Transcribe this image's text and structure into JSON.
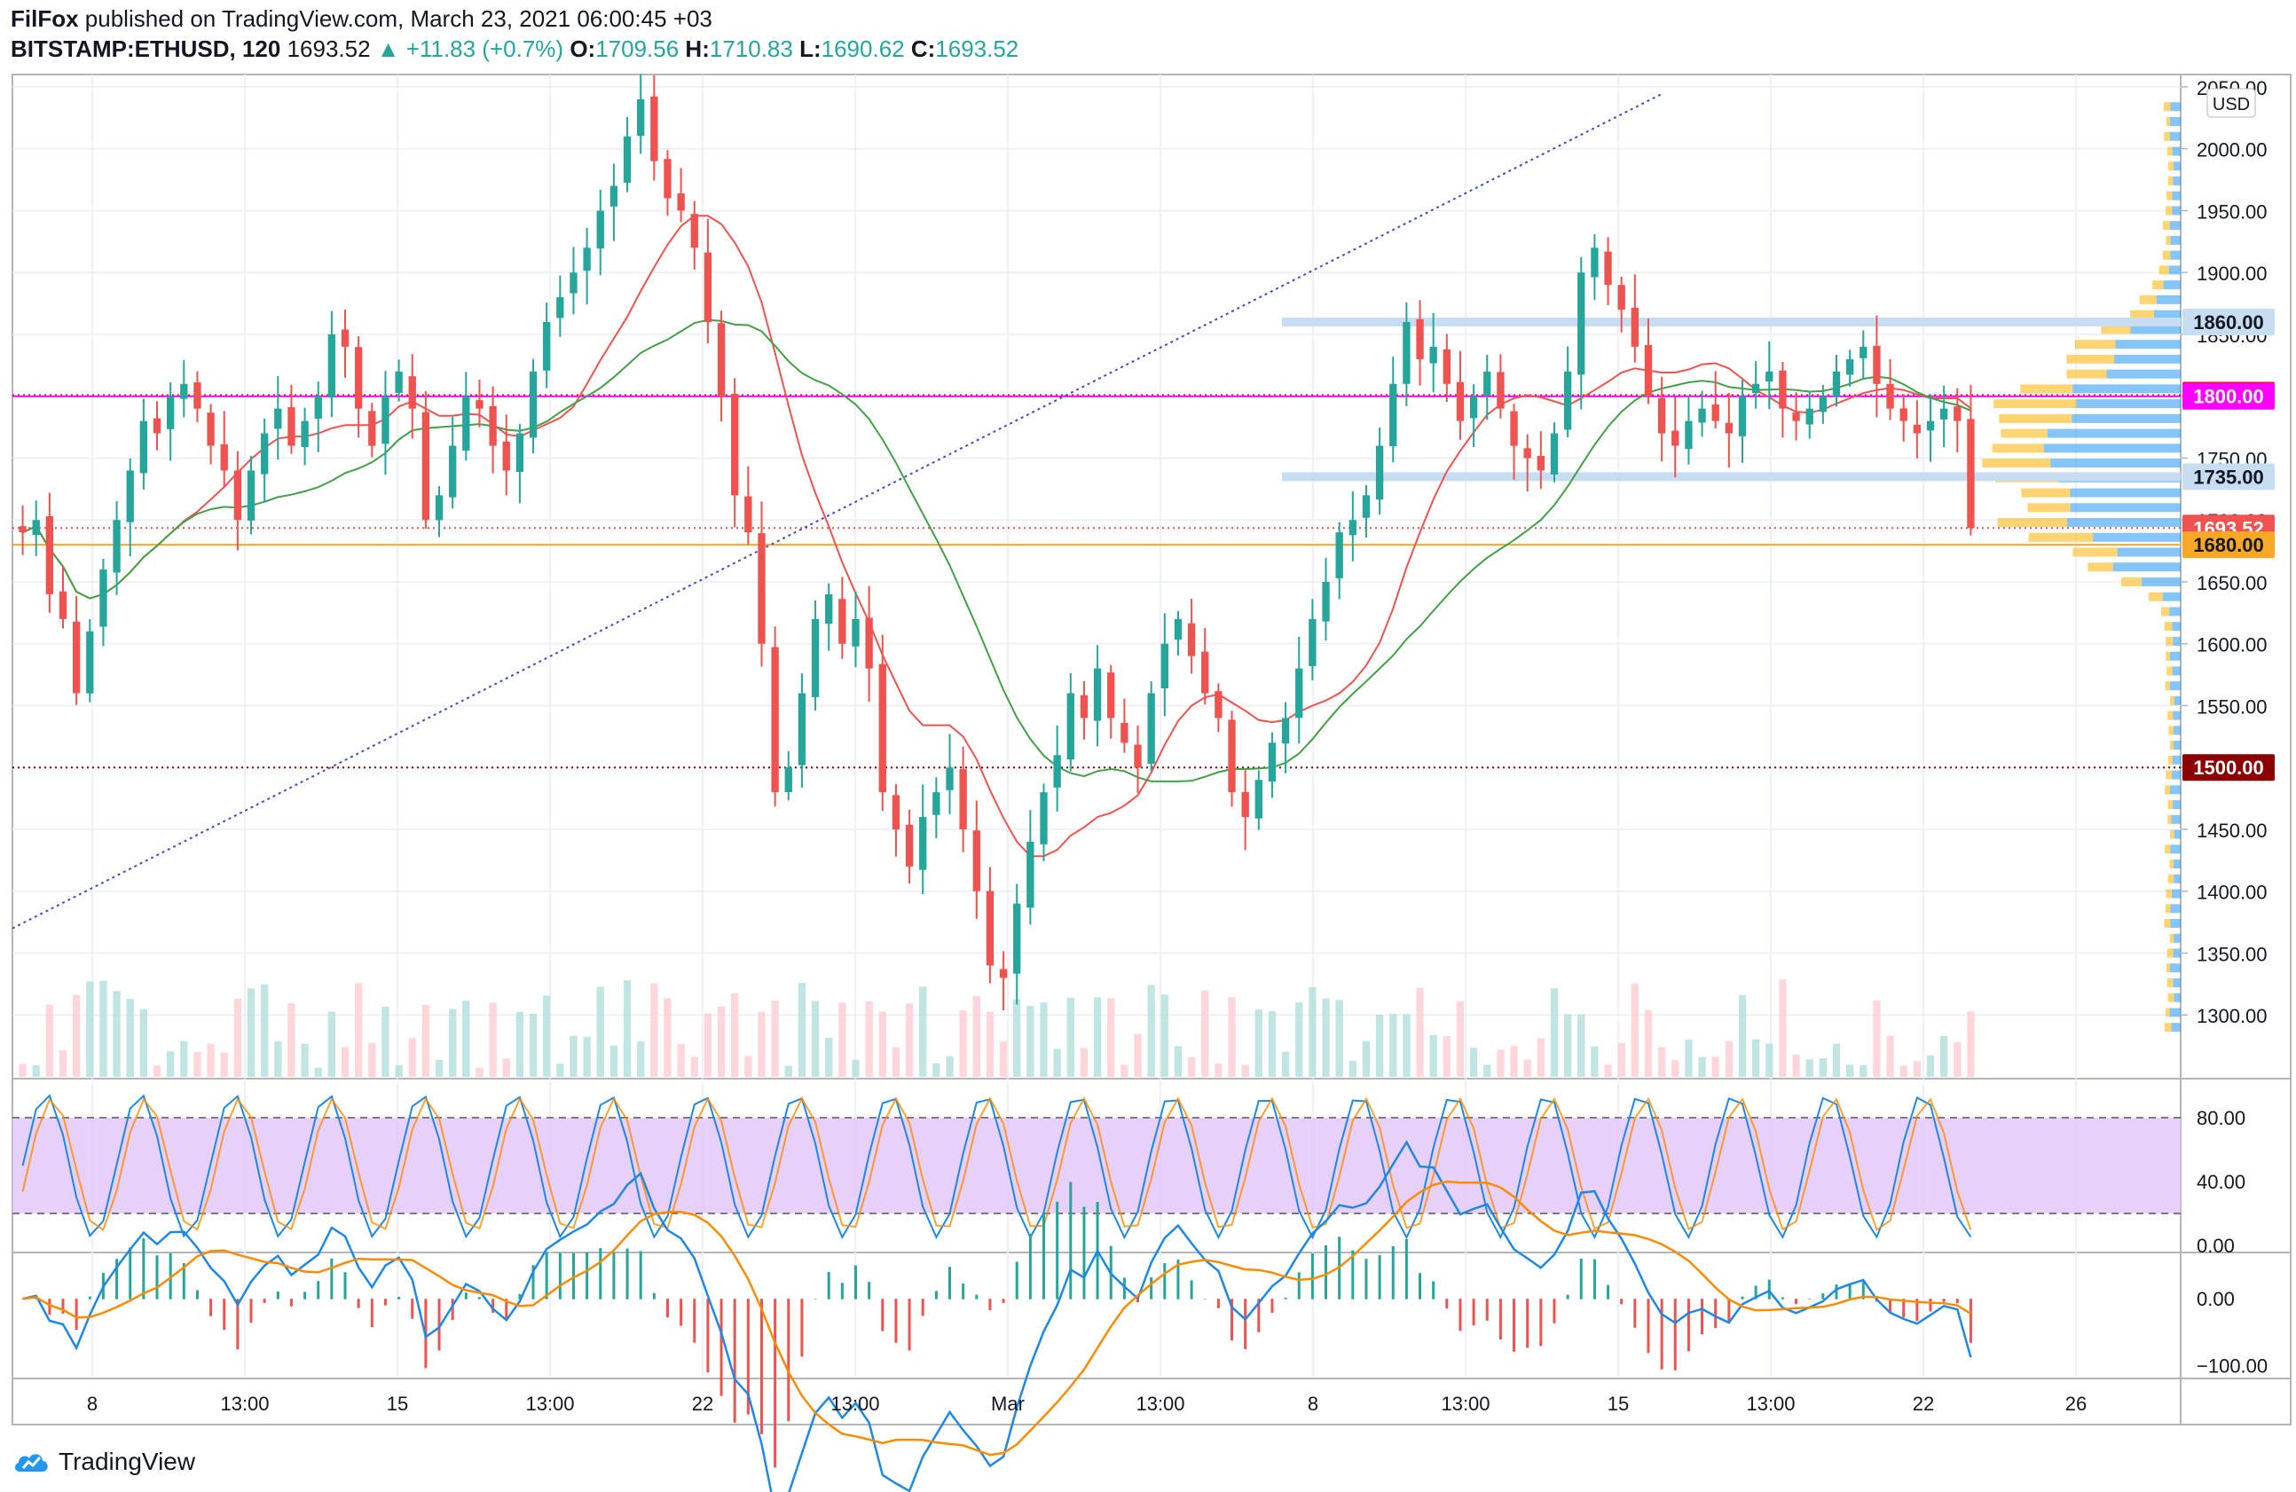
{
  "header": {
    "author": "FilFox",
    "published_text": "published on TradingView.com, March 23, 2021 06:00:45 +03",
    "symbol": "BITSTAMP:ETHUSD, 120",
    "last": "1693.52",
    "change": "+11.83 (+0.7%)",
    "o_label": "O:",
    "o": "1709.56",
    "h_label": "H:",
    "h": "1710.83",
    "l_label": "L:",
    "l": "1690.62",
    "c_label": "C:",
    "c": "1693.52"
  },
  "footer": {
    "brand": "TradingView"
  },
  "colors": {
    "up": "#26a69a",
    "down": "#ef5350",
    "grid": "#e9eef5",
    "sr_band": "#c7ddf2",
    "red_level": "#e91e63",
    "orange_level": "#f9a825",
    "ma_fast": "#ef5350",
    "ma_slow": "#43a047",
    "trendline": "#3f51b5",
    "stoch_fill": "#e1c4f7",
    "macd_line": "#1e88e5",
    "signal_line": "#fb8c00"
  },
  "chart_data": {
    "type": "candlestick",
    "currency": "USD",
    "price_ticks": [
      "2050.00",
      "2000.00",
      "1950.00",
      "1900.00",
      "1850.00",
      "1800.00",
      "1750.00",
      "1700.00",
      "1650.00",
      "1600.00",
      "1550.00",
      "1500.00",
      "1450.00",
      "1400.00",
      "1350.00",
      "1300.00"
    ],
    "x_ticks": [
      "8",
      "13:00",
      "15",
      "13:00",
      "22",
      "13:00",
      "Mar",
      "13:00",
      "8",
      "13:00",
      "15",
      "13:00",
      "22",
      "26"
    ],
    "price_range": [
      1250,
      2060
    ],
    "closes": [
      1690,
      1700,
      1640,
      1620,
      1560,
      1610,
      1660,
      1700,
      1740,
      1780,
      1770,
      1800,
      1810,
      1790,
      1760,
      1740,
      1700,
      1740,
      1770,
      1790,
      1760,
      1780,
      1800,
      1850,
      1840,
      1790,
      1760,
      1800,
      1820,
      1790,
      1700,
      1720,
      1760,
      1800,
      1790,
      1760,
      1740,
      1770,
      1820,
      1860,
      1880,
      1900,
      1920,
      1950,
      1970,
      2010,
      2040,
      1990,
      1960,
      1950,
      1920,
      1860,
      1800,
      1720,
      1690,
      1600,
      1480,
      1500,
      1560,
      1620,
      1640,
      1600,
      1620,
      1580,
      1480,
      1450,
      1420,
      1460,
      1480,
      1500,
      1450,
      1400,
      1340,
      1330,
      1390,
      1440,
      1480,
      1510,
      1560,
      1540,
      1580,
      1540,
      1520,
      1500,
      1560,
      1600,
      1620,
      1590,
      1560,
      1540,
      1480,
      1460,
      1490,
      1520,
      1540,
      1580,
      1620,
      1650,
      1690,
      1700,
      1720,
      1760,
      1810,
      1860,
      1830,
      1840,
      1810,
      1780,
      1800,
      1820,
      1790,
      1760,
      1750,
      1740,
      1770,
      1820,
      1900,
      1920,
      1890,
      1870,
      1840,
      1800,
      1770,
      1760,
      1780,
      1790,
      1780,
      1770,
      1800,
      1810,
      1820,
      1790,
      1780,
      1790,
      1800,
      1820,
      1830,
      1840,
      1810,
      1790,
      1780,
      1770,
      1780,
      1790,
      1780,
      1693.52
    ],
    "levels": [
      {
        "label": "1860.00",
        "value": 1860,
        "style": "band",
        "color": "#c7ddf2",
        "text_color": "#131722"
      },
      {
        "label": "1800.89",
        "value": 1800.89,
        "style": "dotted",
        "color": "#ff0000",
        "text_color": "#ffffff"
      },
      {
        "label": "1800.00",
        "value": 1800,
        "style": "solid",
        "color": "#ff00ff",
        "text_color": "#ffffff"
      },
      {
        "label": "1735.00",
        "value": 1735,
        "style": "band",
        "color": "#c7ddf2",
        "text_color": "#131722"
      },
      {
        "label": "1693.52",
        "value": 1693.52,
        "style": "dotted",
        "color": "#ef5350",
        "text_color": "#ffffff"
      },
      {
        "label": "1680.00",
        "value": 1680,
        "style": "solid",
        "color": "#f9a825",
        "text_color": "#131722"
      },
      {
        "label": "1500.00",
        "value": 1500,
        "style": "dotted",
        "color": "#8b0000",
        "text_color": "#ffffff"
      }
    ],
    "stoch": {
      "ticks": [
        "80.00",
        "40.00",
        "0.00"
      ],
      "range": [
        0,
        100
      ],
      "upper": 80,
      "lower": 20
    },
    "macd": {
      "ticks": [
        "0.00",
        "−100.00"
      ],
      "range": [
        -110,
        60
      ]
    }
  }
}
